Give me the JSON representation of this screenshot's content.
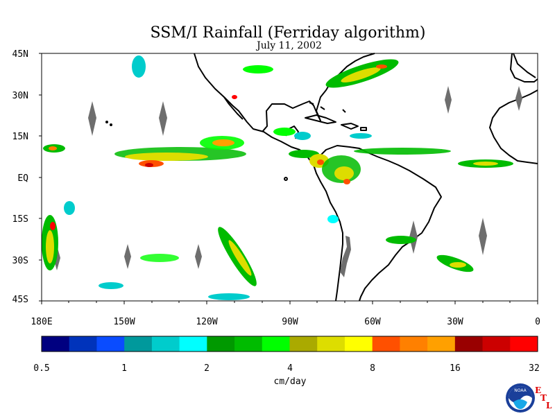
{
  "title": "SSM/I Rainfall (Ferriday algorithm)",
  "subtitle": "July 11, 2002",
  "lat_labels": [
    "45N",
    "30N",
    "15N",
    "EQ",
    "15S",
    "30S",
    "45S"
  ],
  "lon_labels": [
    "180E",
    "150W",
    "120W",
    "90W",
    "60W",
    "30W",
    "0"
  ],
  "colorbar": {
    "colors": [
      "#000080",
      "#0033bb",
      "#0a4cff",
      "#00999c",
      "#00cccc",
      "#00ffff",
      "#009900",
      "#00bb00",
      "#00ff00",
      "#aaaa00",
      "#dddd00",
      "#ffff00",
      "#ff5000",
      "#ff8000",
      "#ffa000",
      "#990000",
      "#cc0000",
      "#ff0000"
    ],
    "tick_labels": [
      "0.5",
      "1",
      "2",
      "4",
      "8",
      "16",
      "32"
    ],
    "unit": "cm/day"
  },
  "logo": {
    "text": "NOAA",
    "etl_letters": [
      "E",
      "T",
      "L"
    ]
  }
}
